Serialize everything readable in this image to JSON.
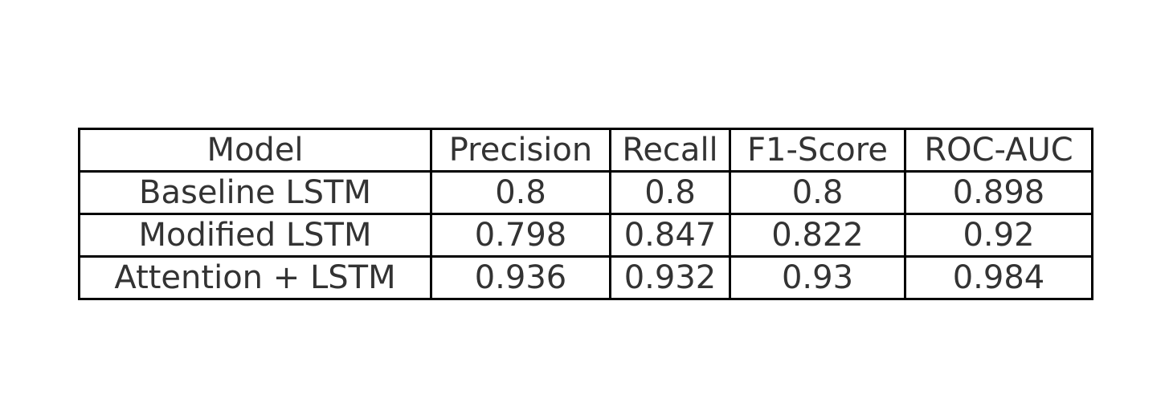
{
  "chart_data": {
    "type": "table",
    "columns": [
      "Model",
      "Precision",
      "Recall",
      "F1-Score",
      "ROC-AUC"
    ],
    "rows": [
      [
        "Baseline LSTM",
        "0.8",
        "0.8",
        "0.8",
        "0.898"
      ],
      [
        "Modified LSTM",
        "0.798",
        "0.847",
        "0.822",
        "0.92"
      ],
      [
        "Attention + LSTM",
        "0.936",
        "0.932",
        "0.93",
        "0.984"
      ]
    ]
  },
  "colors": {
    "border": "#000000",
    "text": "#333333",
    "background": "#ffffff"
  }
}
